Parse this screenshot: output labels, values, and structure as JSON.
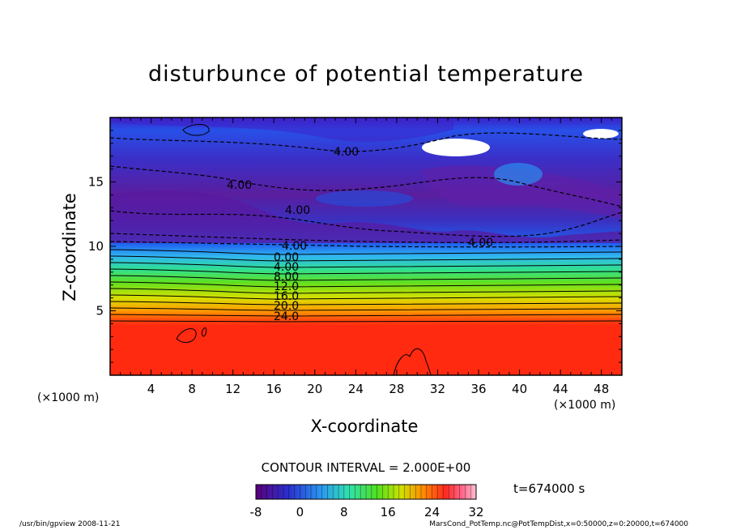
{
  "chart_data": {
    "type": "heatmap",
    "title": "disturbunce of potential temperature",
    "xlabel": "X-coordinate",
    "ylabel": "Z-coordinate",
    "x_unit_left": "(×1000 m)",
    "x_unit_right": "(×1000 m)",
    "xlim": [
      0,
      50
    ],
    "ylim": [
      0,
      20
    ],
    "x_ticks": [
      "4",
      "8",
      "12",
      "16",
      "20",
      "24",
      "28",
      "32",
      "36",
      "40",
      "44",
      "48"
    ],
    "y_ticks": [
      "5",
      "10",
      "15"
    ],
    "contour_labels": [
      "4.00",
      "4.00",
      "4.00",
      "4.00",
      "4.00",
      "0.00",
      "4.00",
      "8.00",
      "12.0",
      "16.0",
      "20.0",
      "24.0"
    ],
    "contour_interval": "CONTOUR INTERVAL = 2.000E+00",
    "colorbar": {
      "range": [
        -8,
        32
      ],
      "ticks": [
        "-8",
        "0",
        "8",
        "16",
        "24",
        "32"
      ],
      "colors": [
        "#5a007a",
        "#3a10b0",
        "#1f45e0",
        "#2a8df0",
        "#35d0e8",
        "#30e080",
        "#40e020",
        "#b0e010",
        "#ffd000",
        "#ff8a00",
        "#ff3a10",
        "#ff6a80",
        "#ffb0c0"
      ]
    },
    "time": "t=674000 s"
  },
  "footer": {
    "left": "/usr/bin/gpview   2008-11-21",
    "right": "MarsCond_PotTemp.nc@PotTempDist,x=0:50000,z=0:20000,t=674000"
  }
}
